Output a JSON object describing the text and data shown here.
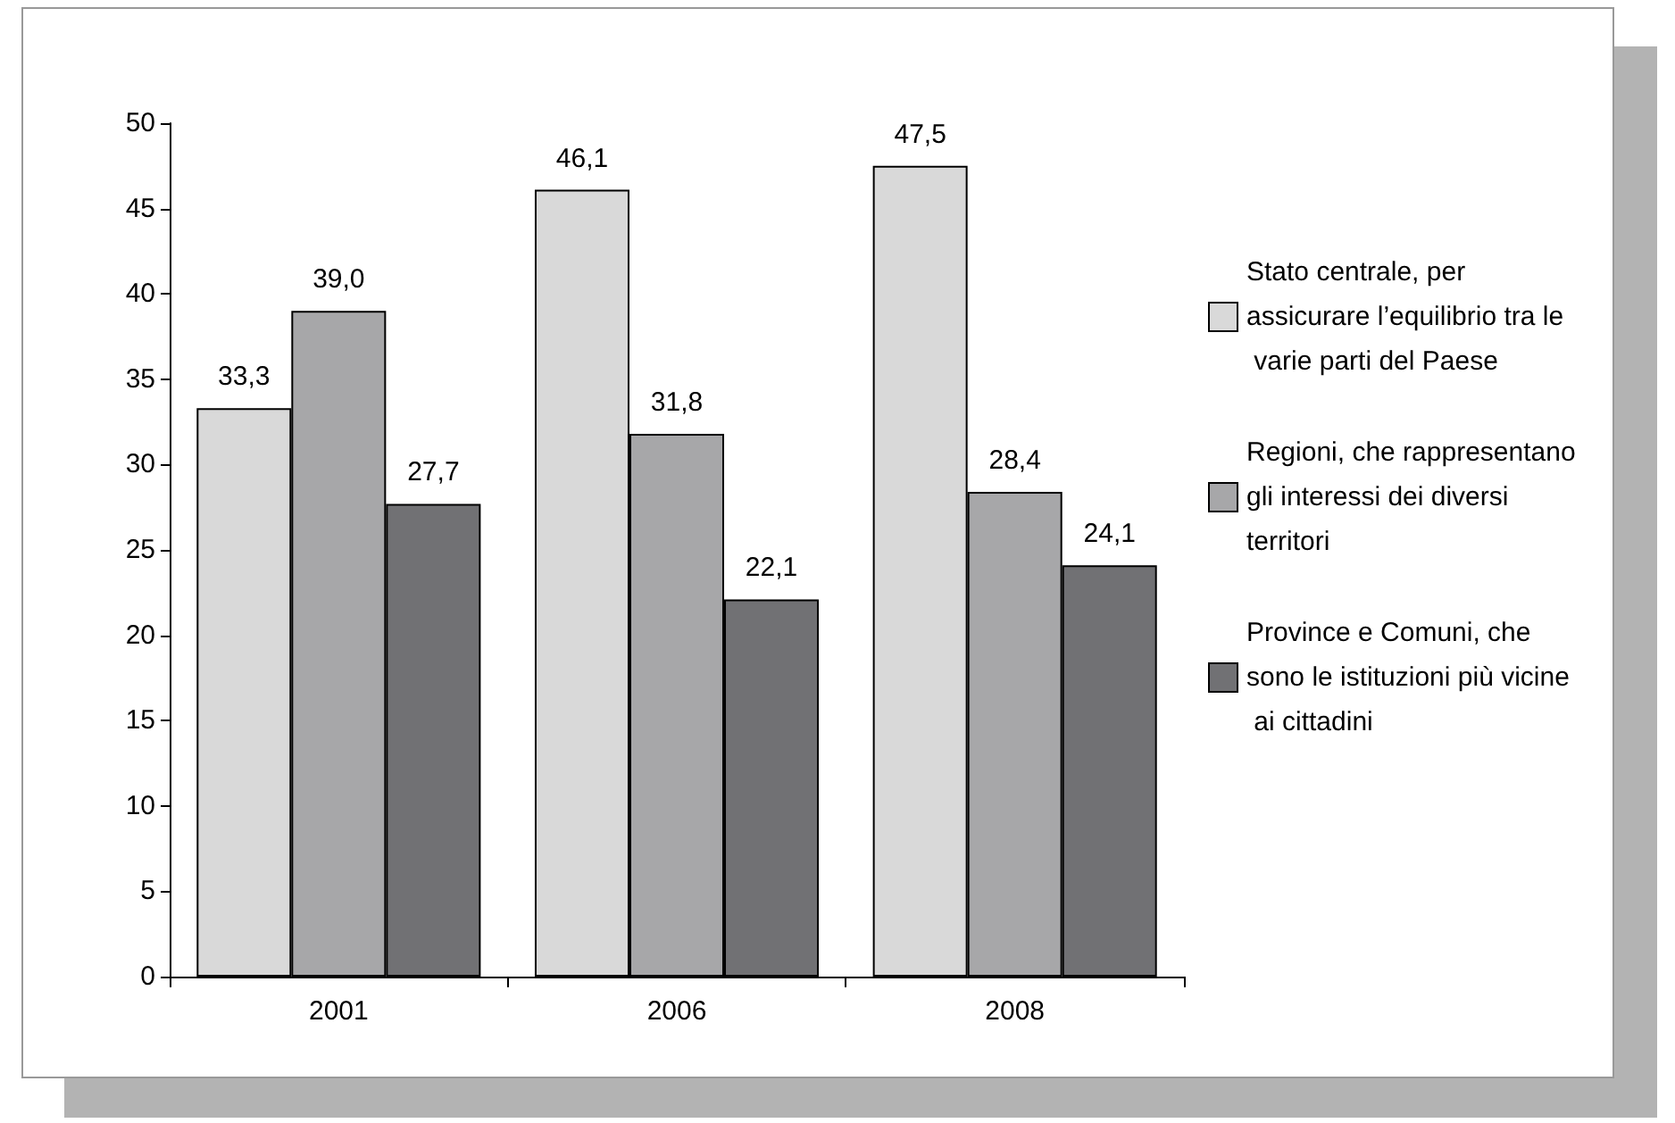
{
  "chart_data": {
    "type": "bar",
    "categories": [
      "2001",
      "2006",
      "2008"
    ],
    "series": [
      {
        "name": "Stato centrale, per assicurare l’equilibrio tra le varie parti del Paese",
        "color": "#d9d9d9",
        "values": [
          33.3,
          46.1,
          47.5
        ],
        "value_labels": [
          "33,3",
          "46,1",
          "47,5"
        ]
      },
      {
        "name": "Regioni, che rappresentano gli interessi dei diversi territori",
        "color": "#a7a7a9",
        "values": [
          39.0,
          31.8,
          28.4
        ],
        "value_labels": [
          "39,0",
          "31,8",
          "28,4"
        ]
      },
      {
        "name": "Province e Comuni, che sono le istituzioni più vicine ai cittadini",
        "color": "#717174",
        "values": [
          27.7,
          22.1,
          24.1
        ],
        "value_labels": [
          "27,7",
          "22,1",
          "24,1"
        ]
      }
    ],
    "ylim": [
      0,
      50
    ],
    "yticks": [
      0,
      5,
      10,
      15,
      20,
      25,
      30,
      35,
      40,
      45,
      50
    ],
    "grid": false,
    "legend": "right"
  }
}
